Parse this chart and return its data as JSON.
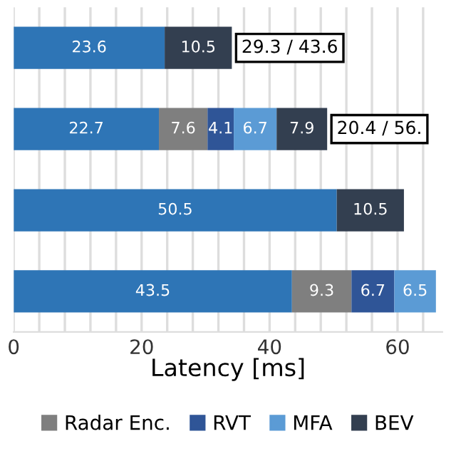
{
  "chart_data": {
    "type": "bar",
    "orientation": "horizontal",
    "stacked": true,
    "xlabel": "Latency [ms]",
    "categories": [
      null,
      null,
      null,
      null
    ],
    "series": [
      {
        "color": "#2e75b6",
        "values": [
          23.6,
          22.7,
          50.5,
          43.5
        ]
      },
      {
        "name": "Radar Enc.",
        "color": "#7f7f7f",
        "values": [
          null,
          7.6,
          null,
          9.3
        ]
      },
      {
        "name": "RVT",
        "color": "#2f5597",
        "values": [
          null,
          4.1,
          null,
          6.7
        ]
      },
      {
        "name": "MFA",
        "color": "#5b9bd5",
        "values": [
          null,
          6.7,
          null,
          6.5
        ]
      },
      {
        "name": "BEV",
        "color": "#333f50",
        "values": [
          10.5,
          7.9,
          10.5,
          null
        ]
      }
    ],
    "data_labels": true,
    "annotations": [
      "29.3 / 43.6",
      "20.4 / 56."
    ],
    "xlim": [
      0,
      67
    ],
    "xticks": [
      0,
      {
        "value": 4,
        "label": null
      },
      {
        "value": 8,
        "label": null
      },
      {
        "value": 12,
        "label": null
      },
      {
        "value": 16,
        "label": null
      },
      20,
      {
        "value": 24,
        "label": null
      },
      {
        "value": 28,
        "label": null
      },
      {
        "value": 32,
        "label": null
      },
      {
        "value": 36,
        "label": null
      },
      40,
      {
        "value": 44,
        "label": null
      },
      {
        "value": 48,
        "label": null
      },
      {
        "value": 52,
        "label": null
      },
      {
        "value": 56,
        "label": null
      },
      60,
      {
        "value": 64,
        "label": null
      }
    ],
    "grid": "x",
    "legend": "bottom"
  }
}
